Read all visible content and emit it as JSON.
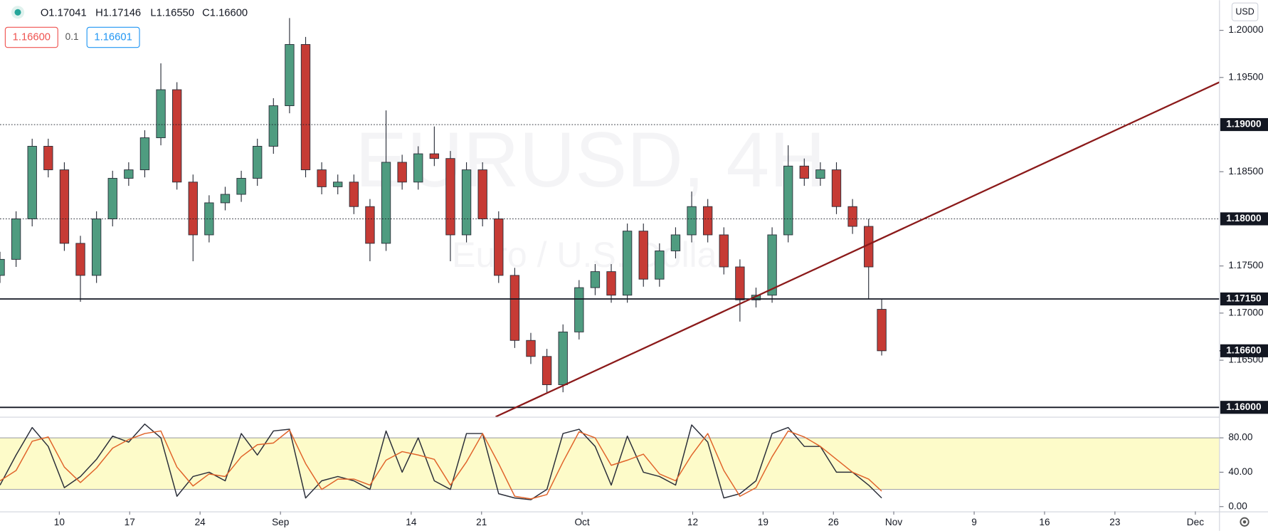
{
  "header": {
    "ohlc": [
      "O1.17041",
      "H1.17146",
      "L1.16550",
      "C1.16600"
    ],
    "bid": "1.16600",
    "spread": "0.1",
    "ask": "1.16601",
    "currency": "USD",
    "watermark": "EURUSD, 4H",
    "watermark_subtitle": "Euro / U.S. Dollar"
  },
  "chart_data": [
    {
      "type": "candlestick",
      "x": [
        3.1,
        4.7,
        6.3,
        7.9,
        9.5,
        11.1,
        12.7,
        14.3,
        15.9,
        17.5,
        19.1,
        20.7,
        22.3,
        23.9,
        25.5,
        27.1,
        28.7,
        30.3,
        31.9,
        33.5,
        35.1,
        36.7,
        38.3,
        39.9,
        41.5,
        43.1,
        44.7,
        46.3,
        47.9,
        49.5,
        51.1,
        52.7,
        54.3,
        55.9,
        57.5,
        59.1,
        60.7,
        62.3,
        63.9,
        65.5,
        67.1,
        68.7,
        70.3,
        71.9,
        73.5,
        75.1,
        76.7,
        78.3,
        79.9,
        81.5,
        83.1,
        84.7,
        86.3,
        87.9,
        89.5,
        90.8
      ],
      "open": [
        1.174,
        1.1757,
        1.18,
        1.1877,
        1.1852,
        1.1774,
        1.174,
        1.18,
        1.1843,
        1.1852,
        1.1886,
        1.1937,
        1.1839,
        1.1783,
        1.1817,
        1.1826,
        1.1843,
        1.1877,
        1.192,
        1.1985,
        1.1852,
        1.1834,
        1.1839,
        1.1813,
        1.1774,
        1.186,
        1.1839,
        1.1869,
        1.1864,
        1.1783,
        1.1852,
        1.18,
        1.174,
        1.1671,
        1.1654,
        1.1624,
        1.168,
        1.1727,
        1.1744,
        1.1719,
        1.1787,
        1.1736,
        1.1766,
        1.1783,
        1.1813,
        1.1783,
        1.1749,
        1.1714,
        1.1719,
        1.1783,
        1.1856,
        1.1843,
        1.1852,
        1.1813,
        1.1792,
        1.1704
      ],
      "high": [
        1.1765,
        1.1808,
        1.1885,
        1.1885,
        1.186,
        1.1782,
        1.1808,
        1.1851,
        1.186,
        1.1894,
        1.1965,
        1.1945,
        1.1847,
        1.1825,
        1.1834,
        1.1851,
        1.1885,
        1.1928,
        1.2013,
        1.1993,
        1.186,
        1.1847,
        1.1847,
        1.1821,
        1.1915,
        1.1868,
        1.1877,
        1.1898,
        1.1872,
        1.186,
        1.186,
        1.1808,
        1.1748,
        1.1679,
        1.1662,
        1.1688,
        1.1735,
        1.1752,
        1.1752,
        1.1795,
        1.1795,
        1.1774,
        1.1791,
        1.1829,
        1.1821,
        1.1791,
        1.1757,
        1.1727,
        1.1791,
        1.1878,
        1.1864,
        1.186,
        1.186,
        1.1821,
        1.18,
        1.1715
      ],
      "low": [
        1.1732,
        1.1749,
        1.1792,
        1.1844,
        1.1766,
        1.1712,
        1.1732,
        1.1792,
        1.1835,
        1.1844,
        1.1878,
        1.1831,
        1.1755,
        1.1775,
        1.1809,
        1.1818,
        1.1835,
        1.1869,
        1.1912,
        1.1844,
        1.1826,
        1.1826,
        1.1805,
        1.1755,
        1.1766,
        1.1831,
        1.1831,
        1.1856,
        1.1755,
        1.1775,
        1.1792,
        1.1732,
        1.1663,
        1.1646,
        1.1616,
        1.1616,
        1.1672,
        1.1719,
        1.1711,
        1.1711,
        1.1728,
        1.1728,
        1.1758,
        1.1775,
        1.1775,
        1.1741,
        1.1691,
        1.1706,
        1.1711,
        1.1775,
        1.1835,
        1.1835,
        1.1805,
        1.1784,
        1.1715,
        1.1655
      ],
      "close": [
        1.1757,
        1.18,
        1.1877,
        1.1852,
        1.1774,
        1.174,
        1.18,
        1.1843,
        1.1852,
        1.1886,
        1.1937,
        1.1839,
        1.1783,
        1.1817,
        1.1826,
        1.1843,
        1.1877,
        1.192,
        1.1985,
        1.1852,
        1.1834,
        1.1839,
        1.1813,
        1.1774,
        1.186,
        1.1839,
        1.1869,
        1.1864,
        1.1783,
        1.1852,
        1.18,
        1.174,
        1.1671,
        1.1654,
        1.1624,
        1.168,
        1.1727,
        1.1744,
        1.1719,
        1.1787,
        1.1736,
        1.1766,
        1.1783,
        1.1813,
        1.1783,
        1.1749,
        1.1714,
        1.1719,
        1.1783,
        1.1856,
        1.1843,
        1.1852,
        1.1813,
        1.1792,
        1.1749,
        1.166
      ],
      "up_color": "#4f9c80",
      "down_color": "#c63b35",
      "xlim": [
        3.1,
        124.4
      ],
      "ylim": [
        1.159,
        1.2032
      ],
      "xticks": [
        {
          "value": 9,
          "label": "10"
        },
        {
          "value": 16,
          "label": "17"
        },
        {
          "value": 23,
          "label": "24"
        },
        {
          "value": 31,
          "label": "Sep"
        },
        {
          "value": 44,
          "label": "14"
        },
        {
          "value": 51,
          "label": "21"
        },
        {
          "value": 61,
          "label": "Oct"
        },
        {
          "value": 72,
          "label": "12"
        },
        {
          "value": 79,
          "label": "19"
        },
        {
          "value": 86,
          "label": "26"
        },
        {
          "value": 92,
          "label": "Nov"
        },
        {
          "value": 100,
          "label": "9"
        },
        {
          "value": 107,
          "label": "16"
        },
        {
          "value": 114,
          "label": "23"
        },
        {
          "value": 122,
          "label": "Dec"
        }
      ],
      "yticks": [
        {
          "value": 1.2,
          "label": "1.20000"
        },
        {
          "value": 1.195,
          "label": "1.19500"
        },
        {
          "value": 1.185,
          "label": "1.18500"
        },
        {
          "value": 1.175,
          "label": "1.17500"
        },
        {
          "value": 1.17,
          "label": "1.17000"
        },
        {
          "value": 1.165,
          "label": "1.16500"
        }
      ],
      "levels": [
        {
          "value": 1.19,
          "label": "1.19000",
          "style": "dotted"
        },
        {
          "value": 1.18,
          "label": "1.18000",
          "style": "dotted"
        },
        {
          "value": 1.1715,
          "label": "1.17150",
          "style": "solid"
        },
        {
          "value": 1.16,
          "label": "1.16000",
          "style": "solid"
        }
      ],
      "last_price": {
        "value": 1.166,
        "label": "1.16600"
      },
      "trendline": {
        "x": [
          52.4,
          124.4
        ],
        "y": [
          1.159,
          1.1945
        ],
        "color": "#8b1a1a"
      }
    },
    {
      "type": "line",
      "x": [
        3.1,
        4.7,
        6.3,
        7.9,
        9.5,
        11.1,
        12.7,
        14.3,
        15.9,
        17.5,
        19.1,
        20.7,
        22.3,
        23.9,
        25.5,
        27.1,
        28.7,
        30.3,
        31.9,
        33.5,
        35.1,
        36.7,
        38.3,
        39.9,
        41.5,
        43.1,
        44.7,
        46.3,
        47.9,
        49.5,
        51.1,
        52.7,
        54.3,
        55.9,
        57.5,
        59.1,
        60.7,
        62.3,
        63.9,
        65.5,
        67.1,
        68.7,
        70.3,
        71.9,
        73.5,
        75.1,
        76.7,
        78.3,
        79.9,
        81.5,
        83.1,
        84.7,
        86.3,
        87.9,
        89.5,
        90.8
      ],
      "series": [
        {
          "color": "#2a2e39",
          "values": [
            25,
            60,
            92,
            70,
            22,
            35,
            55,
            82,
            75,
            96,
            80,
            12,
            35,
            40,
            30,
            85,
            60,
            88,
            90,
            10,
            30,
            35,
            30,
            20,
            88,
            40,
            80,
            30,
            20,
            85,
            85,
            15,
            10,
            8,
            20,
            85,
            90,
            70,
            25,
            82,
            40,
            35,
            25,
            95,
            75,
            10,
            15,
            30,
            85,
            92,
            70,
            70,
            40,
            40,
            25,
            10
          ]
        },
        {
          "color": "#e0632a",
          "values": [
            30,
            42,
            76,
            81,
            46,
            28,
            45,
            68,
            78,
            85,
            88,
            46,
            24,
            38,
            35,
            58,
            72,
            74,
            89,
            50,
            20,
            32,
            32,
            25,
            54,
            64,
            60,
            55,
            25,
            52,
            85,
            50,
            12,
            9,
            14,
            52,
            87,
            80,
            48,
            54,
            61,
            38,
            30,
            60,
            85,
            42,
            12,
            22,
            58,
            88,
            81,
            70,
            55,
            40,
            32,
            18
          ]
        }
      ],
      "band": [
        20,
        80
      ],
      "band_color": "#fdfbc9",
      "xlim": [
        3.1,
        124.4
      ],
      "ylim": [
        -5.6,
        104.5
      ],
      "yticks": [
        {
          "value": 0,
          "label": "0.00"
        },
        {
          "value": 40,
          "label": "40.00"
        },
        {
          "value": 80,
          "label": "80.00"
        }
      ]
    }
  ]
}
